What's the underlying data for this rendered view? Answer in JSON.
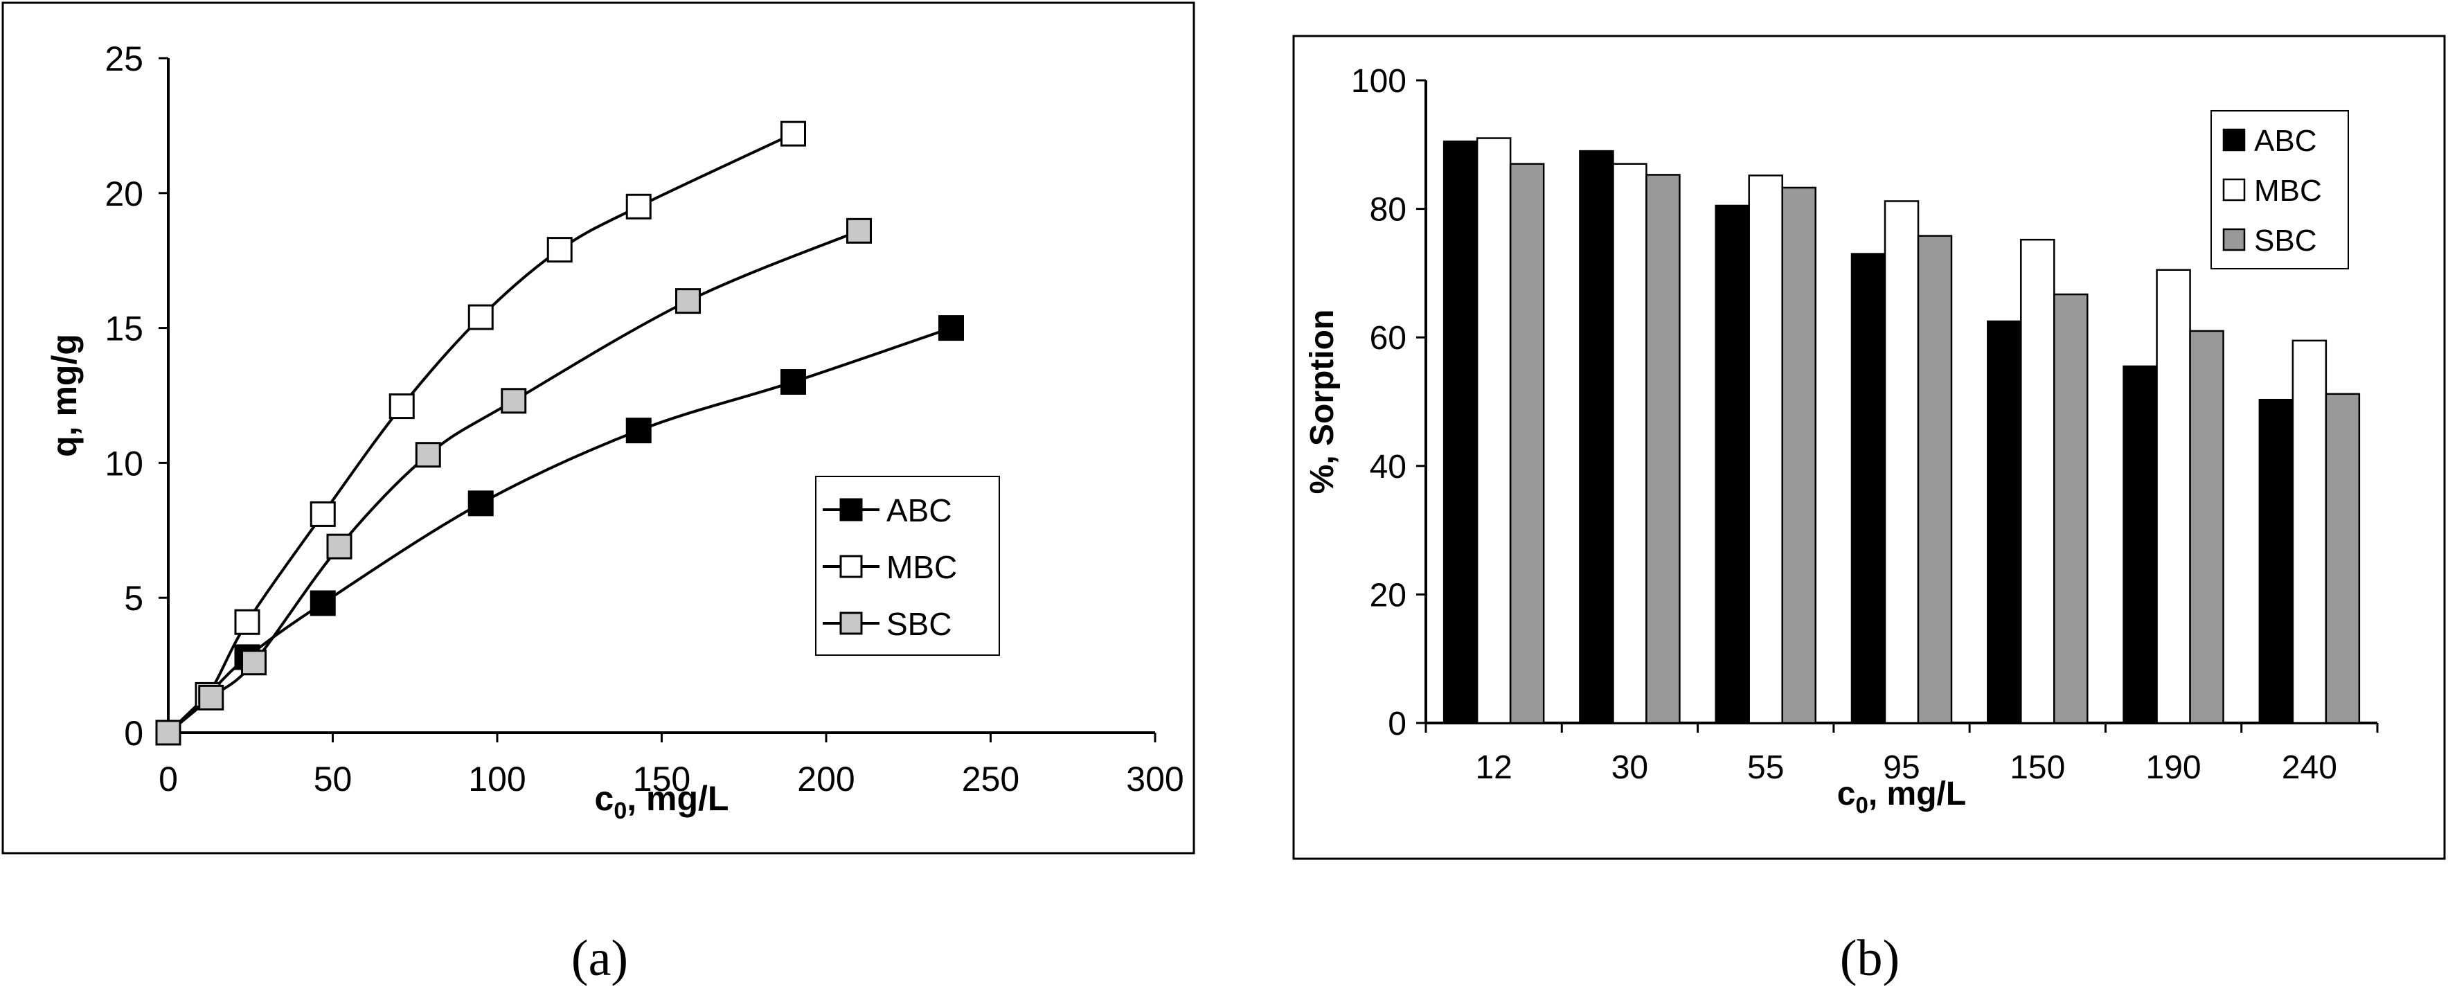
{
  "chart_data": [
    {
      "type": "line",
      "xlabel": "c",
      "xlabel_sub": "0",
      "xlabel_unit": ", mg/L",
      "ylabel": "q, mg/g",
      "xlim": [
        0,
        300
      ],
      "ylim": [
        0,
        25
      ],
      "x_ticks": [
        0,
        50,
        100,
        150,
        200,
        250,
        300
      ],
      "y_ticks": [
        0,
        5,
        10,
        15,
        20,
        25
      ],
      "grid": false,
      "legend": "middle-right",
      "series": [
        {
          "name": "ABC",
          "marker": "square-filled",
          "color": "#000000",
          "x": [
            0,
            12,
            24,
            47,
            95,
            143,
            190,
            238
          ],
          "y": [
            0,
            1.4,
            2.8,
            4.8,
            8.5,
            11.2,
            13.0,
            15.0
          ]
        },
        {
          "name": "MBC",
          "marker": "square-open",
          "color": "#ffffff",
          "x": [
            0,
            12,
            24,
            47,
            71,
            95,
            119,
            143,
            190
          ],
          "y": [
            0,
            1.4,
            4.1,
            8.1,
            12.1,
            15.4,
            17.9,
            19.5,
            22.2
          ]
        },
        {
          "name": "SBC",
          "marker": "square-gray",
          "color": "#c8c8c8",
          "x": [
            0,
            13,
            26,
            52,
            79,
            105,
            158,
            210
          ],
          "y": [
            0,
            1.3,
            2.6,
            6.9,
            10.3,
            12.3,
            16.0,
            18.6
          ]
        }
      ],
      "caption": "(a)"
    },
    {
      "type": "bar",
      "xlabel": "c",
      "xlabel_sub": "0",
      "xlabel_unit": ", mg/L",
      "ylabel": "%, Sorption",
      "ylim": [
        0,
        100
      ],
      "y_ticks": [
        0,
        20,
        40,
        60,
        80,
        100
      ],
      "grid": false,
      "legend": "top-right",
      "categories": [
        "12",
        "30",
        "55",
        "95",
        "150",
        "190",
        "240"
      ],
      "series": [
        {
          "name": "ABC",
          "color": "#000000",
          "values": [
            90.5,
            89,
            80.5,
            73,
            62.5,
            55.5,
            50.3
          ]
        },
        {
          "name": "MBC",
          "color": "#ffffff",
          "values": [
            91,
            87,
            85.2,
            81.2,
            75.2,
            70.5,
            59.5
          ]
        },
        {
          "name": "SBC",
          "color": "#999999",
          "values": [
            87,
            85.3,
            83.3,
            75.8,
            66.7,
            61,
            51.2
          ]
        }
      ],
      "caption": "(b)"
    }
  ]
}
